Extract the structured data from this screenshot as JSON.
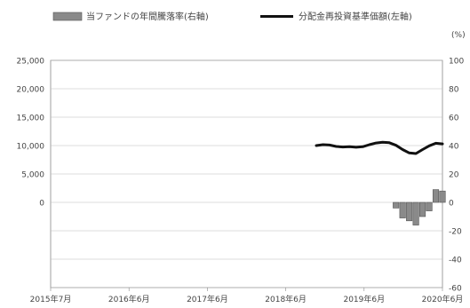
{
  "chart_data": {
    "type": "bar",
    "legend": {
      "position": "top",
      "items": [
        {
          "label": "当ファンドの年間騰落率(右軸)",
          "marker": "bar",
          "color": "#8a8a8a"
        },
        {
          "label": "分配金再投資基準価額(左軸)",
          "marker": "line",
          "color": "#111111"
        }
      ]
    },
    "right_axis_unit": "(%)",
    "x_ticks": [
      "2015年7月",
      "2016年6月",
      "2017年6月",
      "2018年6月",
      "2019年6月",
      "2020年6月"
    ],
    "left_axis": {
      "ticks": [
        "25,000",
        "20,000",
        "15,000",
        "10,000",
        "5,000",
        "0"
      ],
      "ylim": [
        -15000,
        25000
      ]
    },
    "right_axis": {
      "ticks": [
        "100",
        "80",
        "60",
        "40",
        "20",
        "0",
        "-20",
        "-40",
        "-60"
      ],
      "ylim": [
        -60,
        100
      ]
    },
    "grid": true,
    "series": [
      {
        "name": "分配金再投資基準価額(左軸)",
        "axis": "left",
        "type": "line",
        "x": [
          "2018-11",
          "2018-12",
          "2019-01",
          "2019-02",
          "2019-03",
          "2019-04",
          "2019-05",
          "2019-06",
          "2019-07",
          "2019-08",
          "2019-09",
          "2019-10",
          "2019-11",
          "2019-12",
          "2020-01",
          "2020-02",
          "2020-03",
          "2020-04",
          "2020-05",
          "2020-06"
        ],
        "values": [
          10000,
          10150,
          10100,
          9850,
          9750,
          9800,
          9700,
          9800,
          10150,
          10450,
          10600,
          10500,
          10050,
          9300,
          8700,
          8600,
          9300,
          9950,
          10400,
          10300
        ]
      },
      {
        "name": "当ファンドの年間騰落率(右軸)",
        "axis": "right",
        "type": "bar",
        "x": [
          "2019-11",
          "2019-12",
          "2020-01",
          "2020-02",
          "2020-03",
          "2020-04",
          "2020-05",
          "2020-06"
        ],
        "values": [
          -4,
          -11,
          -13,
          -16,
          -10,
          -6,
          9,
          8
        ]
      }
    ]
  }
}
